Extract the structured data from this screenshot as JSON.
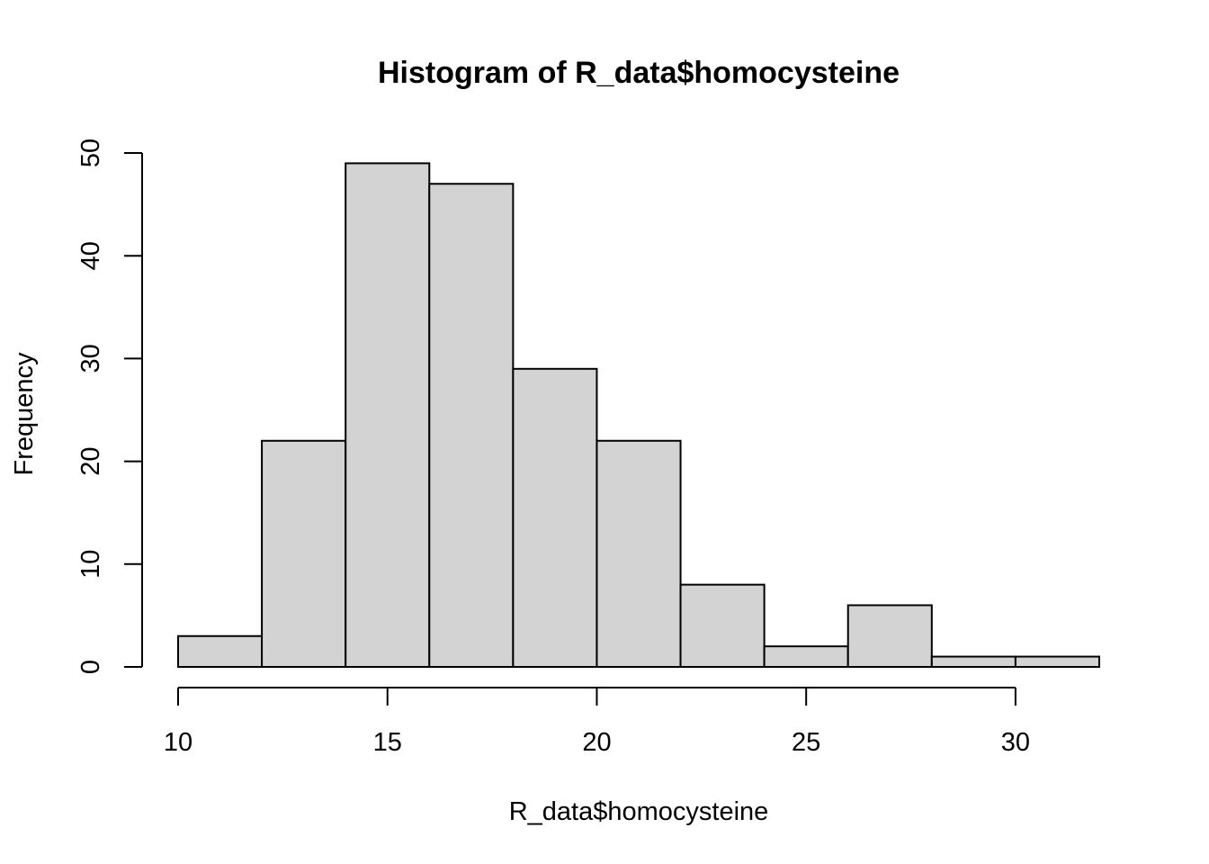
{
  "chart_data": {
    "type": "bar",
    "title": "Histogram of R_data$homocysteine",
    "xlabel": "R_data$homocysteine",
    "ylabel": "Frequency",
    "bins": [
      {
        "start": 10,
        "end": 12,
        "count": 3
      },
      {
        "start": 12,
        "end": 14,
        "count": 22
      },
      {
        "start": 14,
        "end": 16,
        "count": 49
      },
      {
        "start": 16,
        "end": 18,
        "count": 47
      },
      {
        "start": 18,
        "end": 20,
        "count": 29
      },
      {
        "start": 20,
        "end": 22,
        "count": 22
      },
      {
        "start": 22,
        "end": 24,
        "count": 8
      },
      {
        "start": 24,
        "end": 26,
        "count": 2
      },
      {
        "start": 26,
        "end": 28,
        "count": 6
      },
      {
        "start": 28,
        "end": 30,
        "count": 1
      },
      {
        "start": 30,
        "end": 32,
        "count": 1
      }
    ],
    "xlim": [
      10,
      32
    ],
    "ylim": [
      0,
      50
    ],
    "xticks": [
      10,
      15,
      20,
      25,
      30
    ],
    "yticks": [
      0,
      10,
      20,
      30,
      40,
      50
    ],
    "bar_color": "#d3d3d3",
    "edge_color": "#000000",
    "grid": false
  }
}
